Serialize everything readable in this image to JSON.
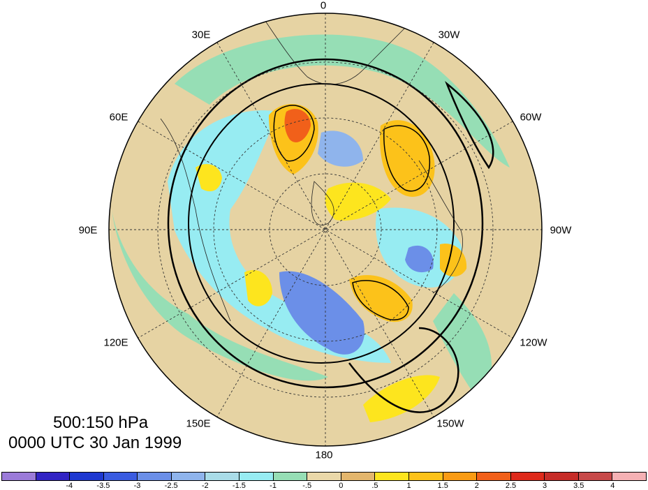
{
  "map": {
    "projection": "polar-stereographic-north",
    "center_lon_label_top": "0",
    "longitude_labels": [
      "0",
      "30W",
      "60W",
      "90W",
      "120W",
      "150W",
      "180",
      "150E",
      "120E",
      "90E",
      "60E",
      "30E"
    ],
    "background_colors": {
      "ocean": "#e6d3a3",
      "land_line": "#222222"
    }
  },
  "captions": {
    "level": "500:150 hPa",
    "time": "0000 UTC 30 Jan 1999"
  },
  "colorbar": {
    "colors": [
      "#9b7bd9",
      "#3224c4",
      "#1e38d0",
      "#3a5be0",
      "#6b8fe8",
      "#8fb4ec",
      "#a9dce8",
      "#97ecf2",
      "#96deb5",
      "#ead8a9",
      "#e3b66d",
      "#fde51e",
      "#fcc21a",
      "#f99b14",
      "#f1601a",
      "#de2a1b",
      "#c62c28",
      "#c74949",
      "#f5b1b4"
    ],
    "labels": [
      "-4",
      "-3.5",
      "-3",
      "-2.5",
      "-2",
      "-1.5",
      "-1",
      "-.5",
      "0",
      ".5",
      "1",
      "1.5",
      "2",
      "2.5",
      "3",
      "3.5",
      "4"
    ]
  }
}
